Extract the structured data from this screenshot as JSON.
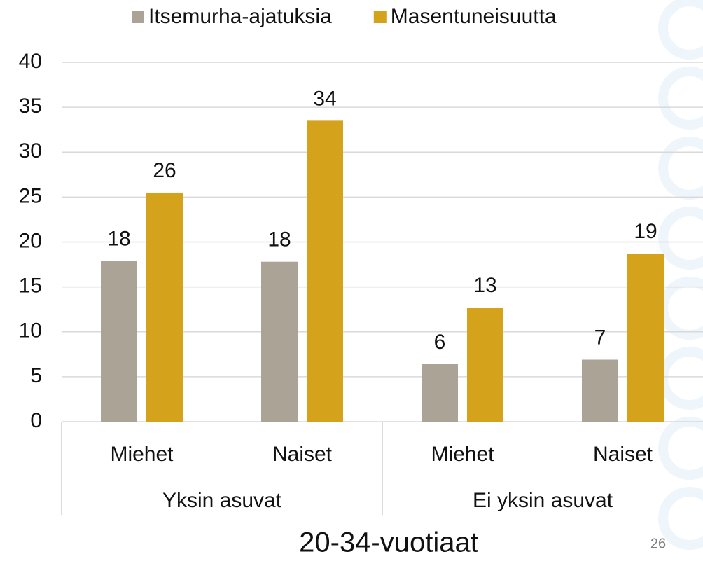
{
  "chart_data": {
    "type": "bar",
    "categories": [
      "Miehet",
      "Naiset",
      "Miehet",
      "Naiset"
    ],
    "group_labels": [
      "Yksin asuvat",
      "Ei yksin asuvat"
    ],
    "series": [
      {
        "name": "Itsemurha-ajatuksia",
        "color": "#aba395",
        "values": [
          17.9,
          17.8,
          6.4,
          6.9
        ],
        "value_labels": [
          "18",
          "18",
          "6",
          "7"
        ]
      },
      {
        "name": "Masentuneisuutta",
        "color": "#d4a21b",
        "values": [
          25.5,
          33.5,
          12.7,
          18.7
        ],
        "value_labels": [
          "26",
          "34",
          "13",
          "19"
        ]
      }
    ],
    "ylim": [
      0,
      40
    ],
    "yticks": [
      0,
      5,
      10,
      15,
      20,
      25,
      30,
      35,
      40
    ],
    "grid": true,
    "xlabel": "20-34-vuotiaat",
    "page_number": "26"
  }
}
